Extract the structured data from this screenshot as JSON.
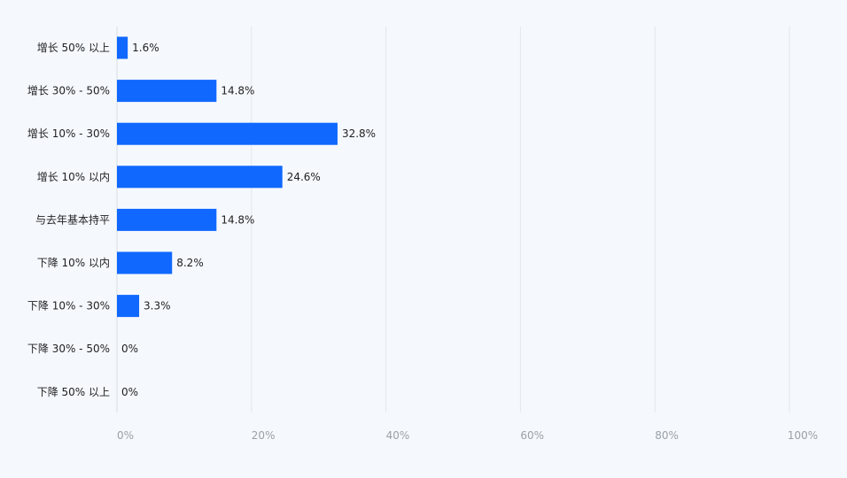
{
  "chart_data": {
    "type": "bar",
    "orientation": "horizontal",
    "categories": [
      "增长 50% 以上",
      "增长 30% - 50%",
      "增长 10% - 30%",
      "增长 10% 以内",
      "与去年基本持平",
      "下降 10% 以内",
      "下降 10% - 30%",
      "下降 30% - 50%",
      "下降 50% 以上"
    ],
    "values": [
      1.6,
      14.8,
      32.8,
      24.6,
      14.8,
      8.2,
      3.3,
      0,
      0
    ],
    "value_labels": [
      "1.6%",
      "14.8%",
      "32.8%",
      "24.6%",
      "14.8%",
      "8.2%",
      "3.3%",
      "0%",
      "0%"
    ],
    "x_ticks": [
      0,
      20,
      40,
      60,
      80,
      100
    ],
    "x_tick_labels": [
      "0%",
      "20%",
      "40%",
      "60%",
      "80%",
      "100%"
    ],
    "xlim": [
      0,
      100
    ],
    "grid": true,
    "bar_color": "#1068ff",
    "title": "",
    "xlabel": "",
    "ylabel": ""
  }
}
